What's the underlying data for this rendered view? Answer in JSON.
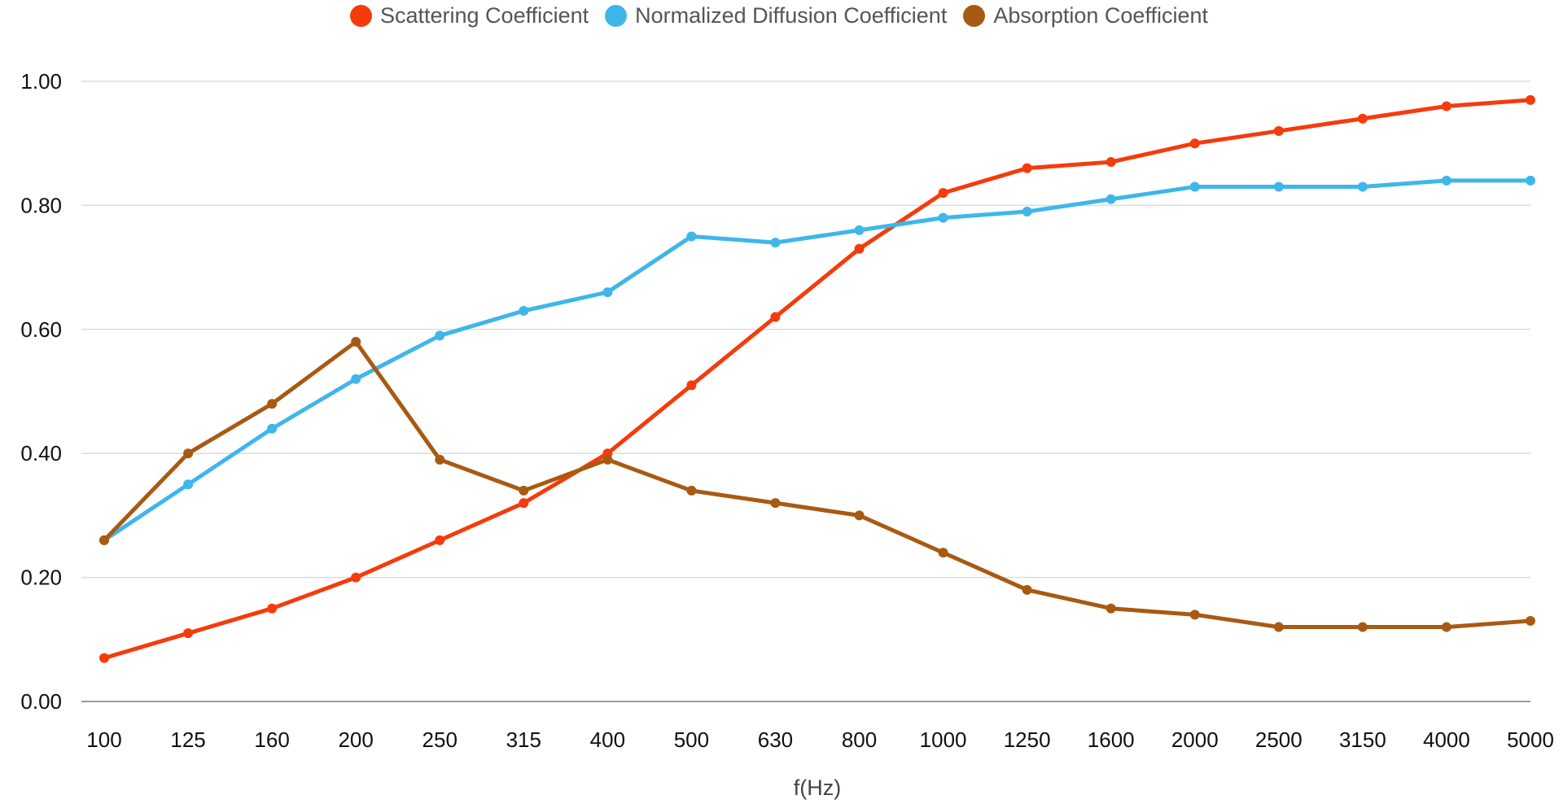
{
  "chart_data": {
    "type": "line",
    "title": "",
    "xlabel": "f(Hz)",
    "ylabel": "",
    "categories": [
      "100",
      "125",
      "160",
      "200",
      "250",
      "315",
      "400",
      "500",
      "630",
      "800",
      "1000",
      "1250",
      "1600",
      "2000",
      "2500",
      "3150",
      "4000",
      "5000"
    ],
    "ylim": [
      0,
      1
    ],
    "yticks": [
      "0.00",
      "0.20",
      "0.40",
      "0.60",
      "0.80",
      "1.00"
    ],
    "ytick_values": [
      0,
      0.2,
      0.4,
      0.6,
      0.8,
      1.0
    ],
    "grid": true,
    "legend_position": "top-center",
    "series": [
      {
        "name": "Scattering Coefficient",
        "color": "#f53b0c",
        "values": [
          0.07,
          0.11,
          0.15,
          0.2,
          0.26,
          0.32,
          0.4,
          0.51,
          0.62,
          0.73,
          0.82,
          0.86,
          0.87,
          0.9,
          0.92,
          0.94,
          0.96,
          0.97
        ]
      },
      {
        "name": "Normalized Diffusion Coefficient",
        "color": "#3fb6ea",
        "values": [
          0.26,
          0.35,
          0.44,
          0.52,
          0.59,
          0.63,
          0.66,
          0.75,
          0.74,
          0.76,
          0.78,
          0.79,
          0.81,
          0.83,
          0.83,
          0.83,
          0.84,
          0.84
        ]
      },
      {
        "name": "Absorption Coefficient",
        "color": "#a85a12",
        "values": [
          0.26,
          0.4,
          0.48,
          0.58,
          0.39,
          0.34,
          0.39,
          0.34,
          0.32,
          0.3,
          0.24,
          0.18,
          0.15,
          0.14,
          0.12,
          0.12,
          0.12,
          0.13
        ]
      }
    ]
  }
}
